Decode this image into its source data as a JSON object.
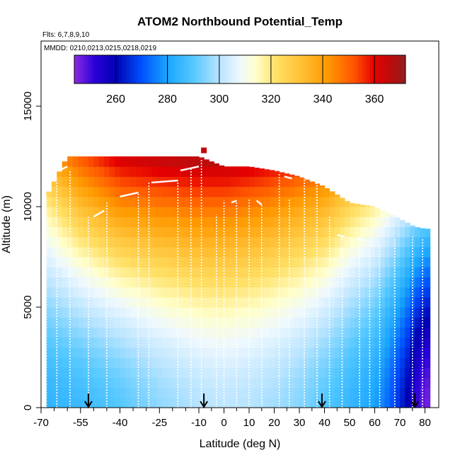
{
  "chart_data": {
    "type": "heatmap",
    "title": "ATOM2 Northbound Potential_Temp",
    "subtitle_flights": "Flts: 6,7,8,9,10",
    "subtitle_dates": "MMDD: 0210,0213,0215,0218,0219",
    "xlabel": "Latitude (deg N)",
    "ylabel": "Altitude (m)",
    "xlim": [
      -70,
      84
    ],
    "ylim": [
      0,
      17500
    ],
    "x_ticks": [
      -70,
      -55,
      -40,
      -25,
      -10,
      0,
      10,
      20,
      30,
      40,
      50,
      60,
      70,
      80
    ],
    "x_tick_labels": [
      "-70",
      "-55",
      "-40",
      "-25",
      "-10",
      "0",
      "10",
      "20",
      "30",
      "40",
      "50",
      "60",
      "70",
      "80"
    ],
    "x_minor_ticks": [
      -65,
      -60,
      -50,
      -45,
      -35,
      -30,
      -20,
      -15,
      -5,
      5,
      15,
      25,
      35,
      45,
      55,
      65,
      75
    ],
    "y_ticks": [
      0,
      5000,
      10000,
      15000
    ],
    "y_tick_labels": [
      "0",
      "5000",
      "10000",
      "15000"
    ],
    "colorbar": {
      "range": [
        244,
        372
      ],
      "ticks": [
        260,
        280,
        300,
        320,
        340,
        360
      ],
      "tick_labels": [
        "260",
        "280",
        "300",
        "320",
        "340",
        "360"
      ],
      "stops": [
        {
          "value": 244,
          "color": "#8a2be2"
        },
        {
          "value": 252,
          "color": "#2a00d8"
        },
        {
          "value": 260,
          "color": "#0000b0"
        },
        {
          "value": 270,
          "color": "#0050ff"
        },
        {
          "value": 280,
          "color": "#1aa6ff"
        },
        {
          "value": 290,
          "color": "#55c8ff"
        },
        {
          "value": 300,
          "color": "#b8e4ff"
        },
        {
          "value": 308,
          "color": "#eef8ff"
        },
        {
          "value": 314,
          "color": "#ffffcc"
        },
        {
          "value": 322,
          "color": "#ffe066"
        },
        {
          "value": 332,
          "color": "#ffbf33"
        },
        {
          "value": 342,
          "color": "#ff9900"
        },
        {
          "value": 352,
          "color": "#ff5500"
        },
        {
          "value": 360,
          "color": "#e50000"
        },
        {
          "value": 368,
          "color": "#b01010"
        },
        {
          "value": 372,
          "color": "#902020"
        }
      ]
    },
    "field_model": {
      "tropopause_top_alt_by_lat": [
        [
          -68,
          10500
        ],
        [
          -60,
          12500
        ],
        [
          -50,
          12500
        ],
        [
          -20,
          12500
        ],
        [
          -10,
          12500
        ],
        [
          0,
          12000
        ],
        [
          10,
          12000
        ],
        [
          20,
          11800
        ],
        [
          30,
          11500
        ],
        [
          40,
          11000
        ],
        [
          50,
          10200
        ],
        [
          60,
          10000
        ],
        [
          70,
          9400
        ],
        [
          76,
          9000
        ],
        [
          80,
          8900
        ]
      ],
      "surface_theta_by_lat": [
        [
          -68,
          284
        ],
        [
          -55,
          286
        ],
        [
          -40,
          290
        ],
        [
          -25,
          296
        ],
        [
          -10,
          300
        ],
        [
          0,
          301
        ],
        [
          10,
          300
        ],
        [
          20,
          298
        ],
        [
          30,
          295
        ],
        [
          40,
          290
        ],
        [
          50,
          285
        ],
        [
          60,
          280
        ],
        [
          66,
          272
        ],
        [
          72,
          262
        ],
        [
          76,
          252
        ],
        [
          80,
          246
        ]
      ],
      "theta_at_10km_by_lat": [
        [
          -68,
          318
        ],
        [
          -55,
          332
        ],
        [
          -40,
          343
        ],
        [
          -25,
          346
        ],
        [
          -10,
          348
        ],
        [
          0,
          348
        ],
        [
          10,
          346
        ],
        [
          20,
          343
        ],
        [
          30,
          339
        ],
        [
          40,
          335
        ],
        [
          50,
          325
        ],
        [
          60,
          318
        ],
        [
          66,
          312
        ],
        [
          72,
          305
        ],
        [
          80,
          298
        ]
      ],
      "theta_lapse_above_10km_per_km": 8
    },
    "flight_profiles": [
      {
        "type": "vertical",
        "lat": -68,
        "alt_top": 10500
      },
      {
        "type": "vertical",
        "lat": -64,
        "alt_top": 11200
      },
      {
        "type": "vertical",
        "lat": -59,
        "alt_top": 11800
      },
      {
        "type": "vertical",
        "lat": -52,
        "alt_top": 9500
      },
      {
        "type": "vertical",
        "lat": -45,
        "alt_top": 10200
      },
      {
        "type": "vertical",
        "lat": -33,
        "alt_top": 10700
      },
      {
        "type": "vertical",
        "lat": -29,
        "alt_top": 11200
      },
      {
        "type": "vertical",
        "lat": -18,
        "alt_top": 11300
      },
      {
        "type": "vertical",
        "lat": -13,
        "alt_top": 11900
      },
      {
        "type": "vertical",
        "lat": -9,
        "alt_top": 12400
      },
      {
        "type": "vertical",
        "lat": -3,
        "alt_top": 9600
      },
      {
        "type": "vertical",
        "lat": 0,
        "alt_top": 10300
      },
      {
        "type": "vertical",
        "lat": 5,
        "alt_top": 10300
      },
      {
        "type": "vertical",
        "lat": 10,
        "alt_top": 10400
      },
      {
        "type": "vertical",
        "lat": 15,
        "alt_top": 10100
      },
      {
        "type": "vertical",
        "lat": 22,
        "alt_top": 11700
      },
      {
        "type": "vertical",
        "lat": 26,
        "alt_top": 10400
      },
      {
        "type": "vertical",
        "lat": 32,
        "alt_top": 11700
      },
      {
        "type": "vertical",
        "lat": 37,
        "alt_top": 11800
      },
      {
        "type": "vertical",
        "lat": 42,
        "alt_top": 9500
      },
      {
        "type": "vertical",
        "lat": 47,
        "alt_top": 8500
      },
      {
        "type": "vertical",
        "lat": 54,
        "alt_top": 8400
      },
      {
        "type": "vertical",
        "lat": 58,
        "alt_top": 8300
      },
      {
        "type": "vertical",
        "lat": 62,
        "alt_top": 8200
      },
      {
        "type": "vertical",
        "lat": 68,
        "alt_top": 8400
      },
      {
        "type": "vertical",
        "lat": 75,
        "alt_top": 8500
      },
      {
        "type": "vertical",
        "lat": 79,
        "alt_top": 8400
      },
      {
        "type": "cruise",
        "lats": [
          -63,
          -60
        ],
        "alts": [
          11800,
          12000
        ]
      },
      {
        "type": "cruise",
        "lats": [
          -50,
          -46
        ],
        "alts": [
          9500,
          9800
        ]
      },
      {
        "type": "cruise",
        "lats": [
          -40,
          -33
        ],
        "alts": [
          10500,
          10700
        ]
      },
      {
        "type": "cruise",
        "lats": [
          -28,
          -18
        ],
        "alts": [
          11200,
          11300
        ]
      },
      {
        "type": "cruise",
        "lats": [
          -17,
          -10
        ],
        "alts": [
          11800,
          12000
        ]
      },
      {
        "type": "cruise",
        "lats": [
          3,
          5
        ],
        "alts": [
          10200,
          10300
        ]
      },
      {
        "type": "cruise",
        "lats": [
          13,
          15
        ],
        "alts": [
          10300,
          10100
        ]
      },
      {
        "type": "cruise",
        "lats": [
          24,
          27
        ],
        "alts": [
          11500,
          11400
        ]
      },
      {
        "type": "cruise",
        "lats": [
          45,
          48
        ],
        "alts": [
          8600,
          8500
        ]
      },
      {
        "type": "cruise",
        "lats": [
          53,
          56
        ],
        "alts": [
          8400,
          8300
        ]
      }
    ],
    "landing_arrows_lat": [
      -52,
      -8,
      39,
      76
    ],
    "red_marker": {
      "lat": -8,
      "alt": 12800
    }
  }
}
